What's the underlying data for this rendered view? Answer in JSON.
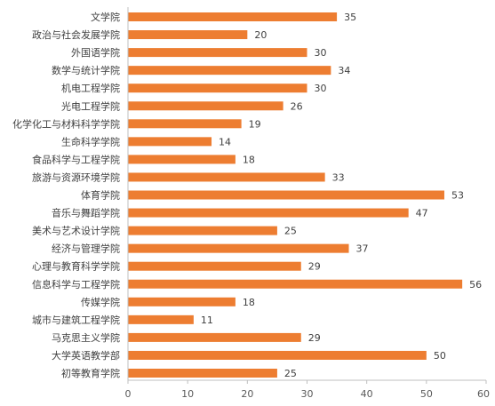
{
  "chart_data": {
    "type": "bar",
    "orientation": "horizontal",
    "title": "",
    "xlabel": "",
    "ylabel": "",
    "categories": [
      "文学院",
      "政治与社会发展学院",
      "外国语学院",
      "数学与统计学院",
      "机电工程学院",
      "光电工程学院",
      "化学化工与材料科学学院",
      "生命科学学院",
      "食品科学与工程学院",
      "旅游与资源环境学院",
      "体育学院",
      "音乐与舞蹈学院",
      "美术与艺术设计学院",
      "经济与管理学院",
      "心理与教育科学学院",
      "信息科学与工程学院",
      "传媒学院",
      "城市与建筑工程学院",
      "马克思主义学院",
      "大学英语教学部",
      "初等教育学院"
    ],
    "values": [
      35,
      20,
      30,
      34,
      30,
      26,
      19,
      14,
      18,
      33,
      53,
      47,
      25,
      37,
      29,
      56,
      18,
      11,
      29,
      50,
      25
    ],
    "xlim": [
      0,
      60
    ],
    "xticks": [
      0,
      10,
      20,
      30,
      40,
      50,
      60
    ],
    "grid": false,
    "legend": "none",
    "bar_color": "#ED7D31",
    "axis_color": "#BFBFBF",
    "data_labels": true
  }
}
